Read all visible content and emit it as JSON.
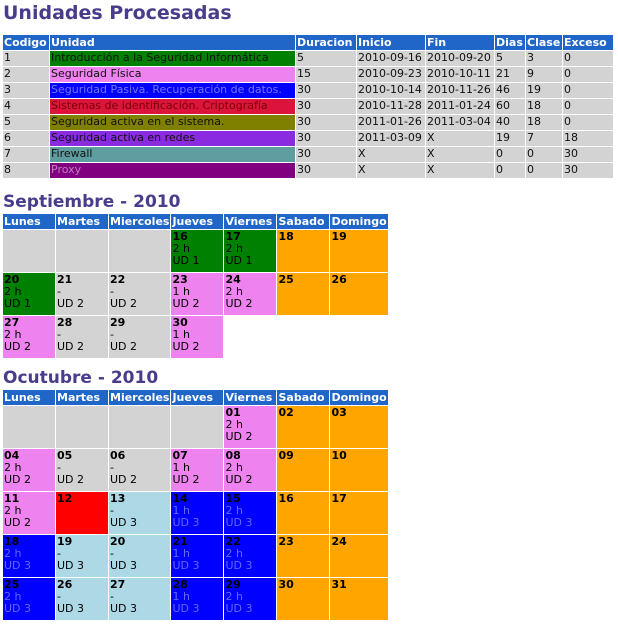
{
  "title": "Unidades Procesadas",
  "units": {
    "headers": [
      "Codigo",
      "Unidad",
      "Duracion",
      "Inicio",
      "Fin",
      "Dias",
      "Clase",
      "Exceso"
    ],
    "rows": [
      {
        "codigo": "1",
        "unidad": "Introducción a la Seguridad Informática",
        "duracion": "5",
        "inicio": "2010-09-16",
        "fin": "2010-09-20",
        "dias": "5",
        "clase": "3",
        "exceso": "0",
        "color": "#008000",
        "text": "#111"
      },
      {
        "codigo": "2",
        "unidad": "Seguridad Física",
        "duracion": "15",
        "inicio": "2010-09-23",
        "fin": "2010-10-11",
        "dias": "21",
        "clase": "9",
        "exceso": "0",
        "color": "#ee82ee",
        "text": "#111"
      },
      {
        "codigo": "3",
        "unidad": "Seguridad Pasiva. Recuperación de datos.",
        "duracion": "30",
        "inicio": "2010-10-14",
        "fin": "2010-11-26",
        "dias": "46",
        "clase": "19",
        "exceso": "0",
        "color": "#0000ff",
        "text": "#7777ff"
      },
      {
        "codigo": "4",
        "unidad": "Sistemas de identificación. Criptografía",
        "duracion": "30",
        "inicio": "2010-11-28",
        "fin": "2011-01-24",
        "dias": "60",
        "clase": "18",
        "exceso": "0",
        "color": "#dc143c",
        "text": "#7a0000"
      },
      {
        "codigo": "5",
        "unidad": "Seguridad activa en el sistema.",
        "duracion": "30",
        "inicio": "2011-01-26",
        "fin": "2011-03-04",
        "dias": "40",
        "clase": "18",
        "exceso": "0",
        "color": "#808000",
        "text": "#111"
      },
      {
        "codigo": "6",
        "unidad": "Seguridad activa en redes",
        "duracion": "30",
        "inicio": "2011-03-09",
        "fin": "X",
        "dias": "19",
        "clase": "7",
        "exceso": "18",
        "color": "#8a2be2",
        "text": "#111"
      },
      {
        "codigo": "7",
        "unidad": "Firewall",
        "duracion": "30",
        "inicio": "X",
        "fin": "X",
        "dias": "0",
        "clase": "0",
        "exceso": "30",
        "color": "#5f9ea0",
        "text": "#111"
      },
      {
        "codigo": "8",
        "unidad": "Proxy",
        "duracion": "30",
        "inicio": "X",
        "fin": "X",
        "dias": "0",
        "clase": "0",
        "exceso": "30",
        "color": "#800080",
        "text": "#c080c0"
      }
    ]
  },
  "calendar_headers": [
    "Lunes",
    "Martes",
    "Miercoles",
    "Jueves",
    "Viernes",
    "Sabado",
    "Domingo"
  ],
  "september": {
    "title": "Septiembre - 2010",
    "weeks": [
      [
        null,
        null,
        null,
        {
          "d": "16",
          "h": "2 h",
          "u": "UD 1",
          "c": "#008000"
        },
        {
          "d": "17",
          "h": "2 h",
          "u": "UD 1",
          "c": "#008000"
        },
        {
          "d": "18",
          "c": "#ffa500"
        },
        {
          "d": "19",
          "c": "#ffa500"
        }
      ],
      [
        {
          "d": "20",
          "h": "2 h",
          "u": "UD 1",
          "c": "#008000"
        },
        {
          "d": "21",
          "h": "-",
          "u": "UD 2",
          "c": "#d3d3d3"
        },
        {
          "d": "22",
          "h": "-",
          "u": "UD 2",
          "c": "#d3d3d3"
        },
        {
          "d": "23",
          "h": "1 h",
          "u": "UD 2",
          "c": "#ee82ee"
        },
        {
          "d": "24",
          "h": "2 h",
          "u": "UD 2",
          "c": "#ee82ee"
        },
        {
          "d": "25",
          "c": "#ffa500"
        },
        {
          "d": "26",
          "c": "#ffa500"
        }
      ],
      [
        {
          "d": "27",
          "h": "2 h",
          "u": "UD 2",
          "c": "#ee82ee"
        },
        {
          "d": "28",
          "h": "-",
          "u": "UD 2",
          "c": "#d3d3d3"
        },
        {
          "d": "29",
          "h": "-",
          "u": "UD 2",
          "c": "#d3d3d3"
        },
        {
          "d": "30",
          "h": "1 h",
          "u": "UD 2",
          "c": "#ee82ee"
        }
      ]
    ]
  },
  "october": {
    "title": "Ocutubre - 2010",
    "weeks": [
      [
        null,
        null,
        null,
        null,
        {
          "d": "01",
          "h": "2 h",
          "u": "UD 2",
          "c": "#ee82ee"
        },
        {
          "d": "02",
          "c": "#ffa500"
        },
        {
          "d": "03",
          "c": "#ffa500"
        }
      ],
      [
        {
          "d": "04",
          "h": "2 h",
          "u": "UD 2",
          "c": "#ee82ee"
        },
        {
          "d": "05",
          "h": "-",
          "u": "UD 2",
          "c": "#d3d3d3"
        },
        {
          "d": "06",
          "h": "-",
          "u": "UD 2",
          "c": "#d3d3d3"
        },
        {
          "d": "07",
          "h": "1 h",
          "u": "UD 2",
          "c": "#ee82ee"
        },
        {
          "d": "08",
          "h": "2 h",
          "u": "UD 2",
          "c": "#ee82ee"
        },
        {
          "d": "09",
          "c": "#ffa500"
        },
        {
          "d": "10",
          "c": "#ffa500"
        }
      ],
      [
        {
          "d": "11",
          "h": "2 h",
          "u": "UD 2",
          "c": "#ee82ee"
        },
        {
          "d": "12",
          "c": "#ff0000"
        },
        {
          "d": "13",
          "h": "-",
          "u": "UD 3",
          "c": "#add8e6"
        },
        {
          "d": "14",
          "h": "1 h",
          "u": "UD 3",
          "c": "#0000ff",
          "t": "#6666ff"
        },
        {
          "d": "15",
          "h": "2 h",
          "u": "UD 3",
          "c": "#0000ff",
          "t": "#6666ff"
        },
        {
          "d": "16",
          "c": "#ffa500"
        },
        {
          "d": "17",
          "c": "#ffa500"
        }
      ],
      [
        {
          "d": "18",
          "h": "2 h",
          "u": "UD 3",
          "c": "#0000ff",
          "t": "#6666ff"
        },
        {
          "d": "19",
          "h": "-",
          "u": "UD 3",
          "c": "#add8e6"
        },
        {
          "d": "20",
          "h": "-",
          "u": "UD 3",
          "c": "#add8e6"
        },
        {
          "d": "21",
          "h": "1 h",
          "u": "UD 3",
          "c": "#0000ff",
          "t": "#6666ff"
        },
        {
          "d": "22",
          "h": "2 h",
          "u": "UD 3",
          "c": "#0000ff",
          "t": "#6666ff"
        },
        {
          "d": "23",
          "c": "#ffa500"
        },
        {
          "d": "24",
          "c": "#ffa500"
        }
      ],
      [
        {
          "d": "25",
          "h": "2 h",
          "u": "UD 3",
          "c": "#0000ff",
          "t": "#6666ff"
        },
        {
          "d": "26",
          "h": "-",
          "u": "UD 3",
          "c": "#add8e6"
        },
        {
          "d": "27",
          "h": "-",
          "u": "UD 3",
          "c": "#add8e6"
        },
        {
          "d": "28",
          "h": "1 h",
          "u": "UD 3",
          "c": "#0000ff",
          "t": "#6666ff"
        },
        {
          "d": "29",
          "h": "2 h",
          "u": "UD 3",
          "c": "#0000ff",
          "t": "#6666ff"
        },
        {
          "d": "30",
          "c": "#ffa500"
        },
        {
          "d": "31",
          "c": "#ffa500"
        }
      ]
    ]
  }
}
